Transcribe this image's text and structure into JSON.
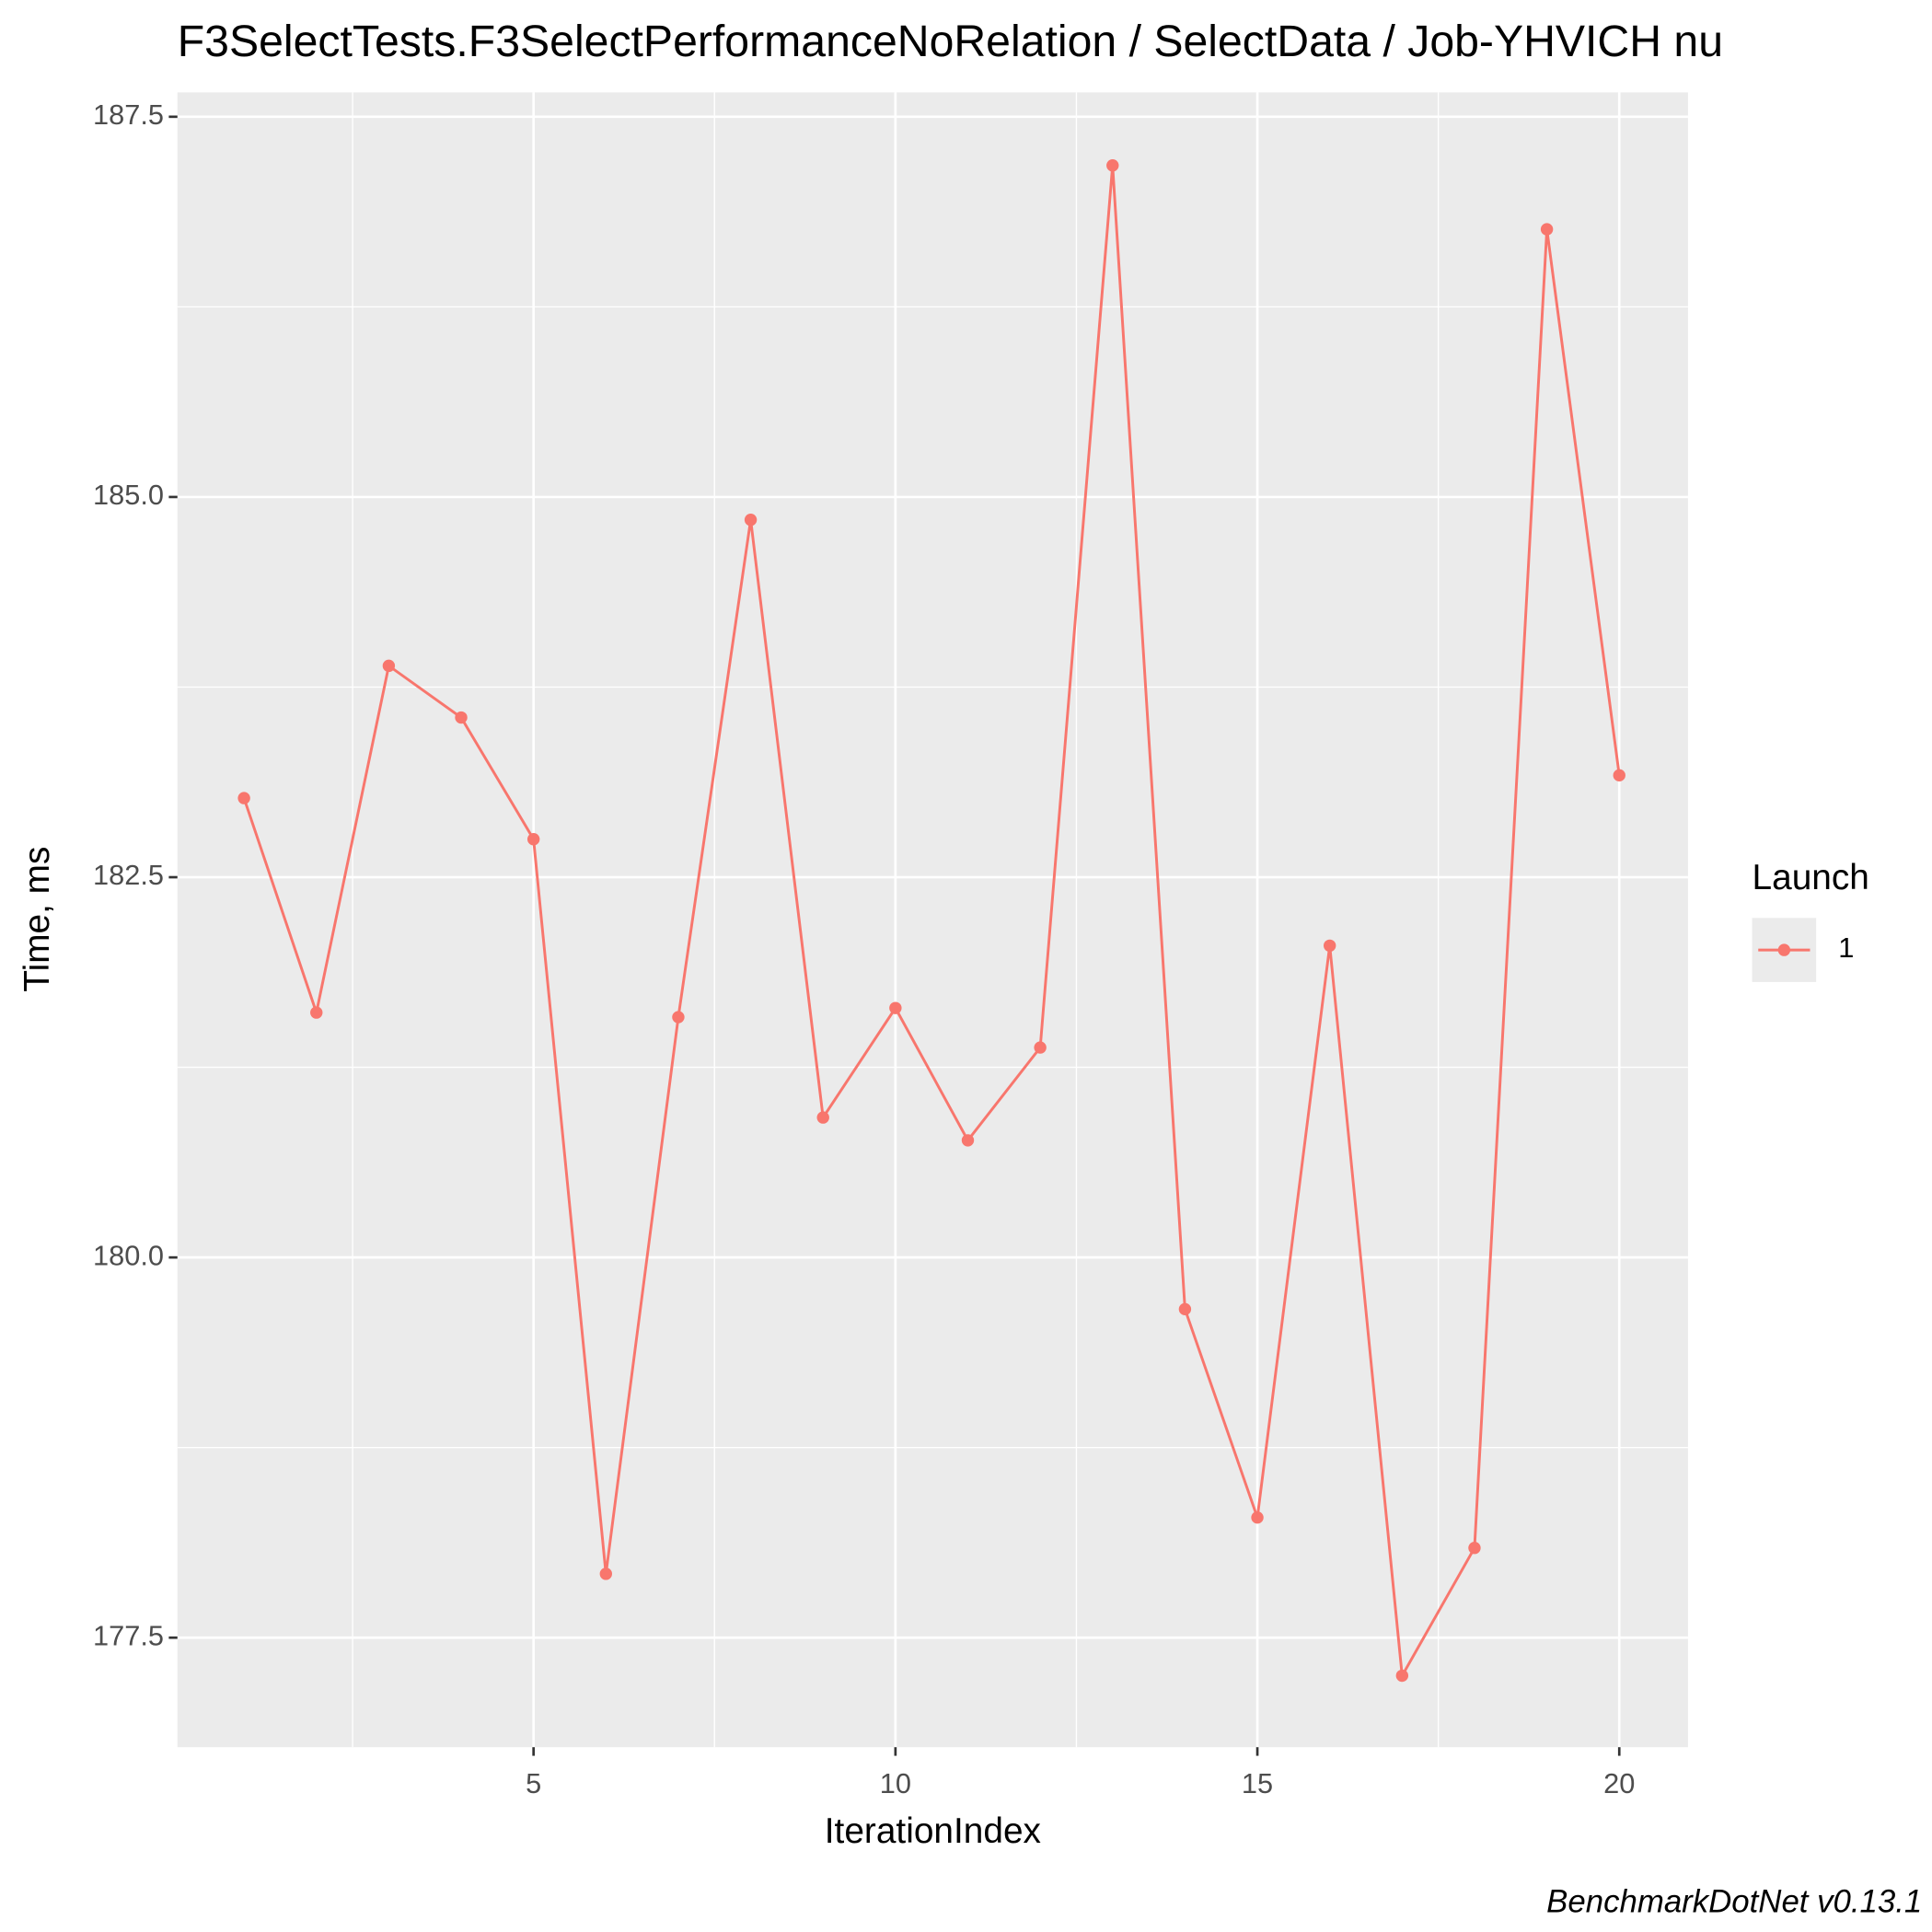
{
  "chart_data": {
    "type": "line",
    "title": "F3SelectTests.F3SelectPerformanceNoRelation / SelectData / Job-YHVICH nu",
    "x_label": "IterationIndex",
    "y_label": "Time, ms",
    "caption": "BenchmarkDotNet v0.13.1",
    "legend_title": "Launch",
    "legend_position": "right",
    "grid": true,
    "x": [
      1,
      2,
      3,
      4,
      5,
      6,
      7,
      8,
      9,
      10,
      11,
      12,
      13,
      14,
      15,
      16,
      17,
      18,
      19,
      20
    ],
    "series": [
      {
        "name": "1",
        "color": "#F8766D",
        "values": [
          183.02,
          181.61,
          183.89,
          183.55,
          182.75,
          177.92,
          181.58,
          184.85,
          180.92,
          181.64,
          180.77,
          181.38,
          187.18,
          179.66,
          178.29,
          182.05,
          177.25,
          178.09,
          186.76,
          183.17
        ]
      }
    ],
    "xlim": [
      0.08,
      20.95
    ],
    "ylim": [
      176.78,
      187.66
    ],
    "xticks": [
      5,
      10,
      15,
      20
    ],
    "yticks": [
      177.5,
      {
        "value": 180,
        "label": "180.0"
      },
      182.5,
      {
        "value": 185,
        "label": "185.0"
      },
      187.5
    ]
  }
}
